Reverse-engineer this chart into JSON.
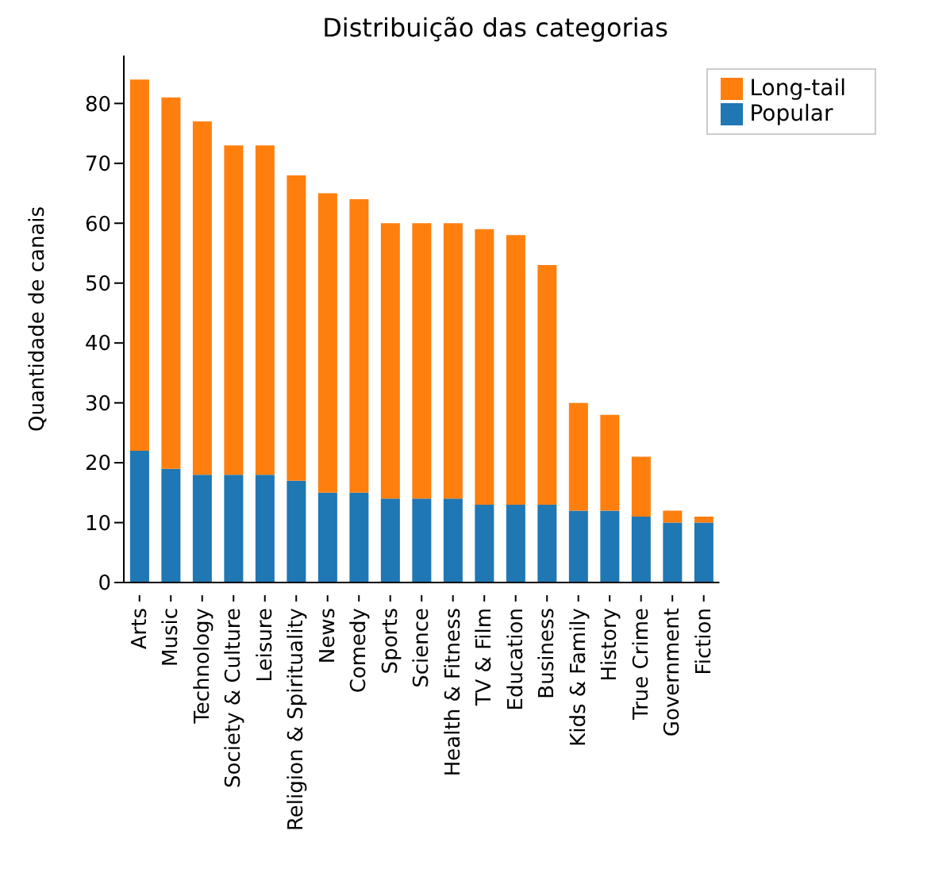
{
  "chart_data": {
    "type": "bar",
    "title": "Distribuição das categorias",
    "ylabel": "Quantidade de canais",
    "stacked": true,
    "legend": "top right",
    "grid": false,
    "categories": [
      "Arts",
      "Music",
      "Technology",
      "Society & Culture",
      "Leisure",
      "Religion & Spirituality",
      "News",
      "Comedy",
      "Sports",
      "Science",
      "Health & Fitness",
      "TV & Film",
      "Education",
      "Business",
      "Kids & Family",
      "History",
      "True Crime",
      "Government",
      "Fiction"
    ],
    "series": [
      {
        "name": "Popular",
        "color": "#1f77b4",
        "values": [
          22,
          19,
          18,
          18,
          18,
          17,
          15,
          15,
          14,
          14,
          14,
          13,
          13,
          13,
          12,
          12,
          11,
          10,
          10
        ]
      },
      {
        "name": "Long-tail",
        "color": "#ff7f0e",
        "values": [
          62,
          62,
          59,
          55,
          55,
          51,
          50,
          49,
          46,
          46,
          46,
          46,
          45,
          40,
          18,
          16,
          10,
          2,
          1
        ]
      }
    ],
    "ylim": [
      0,
      88
    ],
    "yticks": [
      0,
      10,
      20,
      30,
      40,
      50,
      60,
      70,
      80
    ]
  }
}
